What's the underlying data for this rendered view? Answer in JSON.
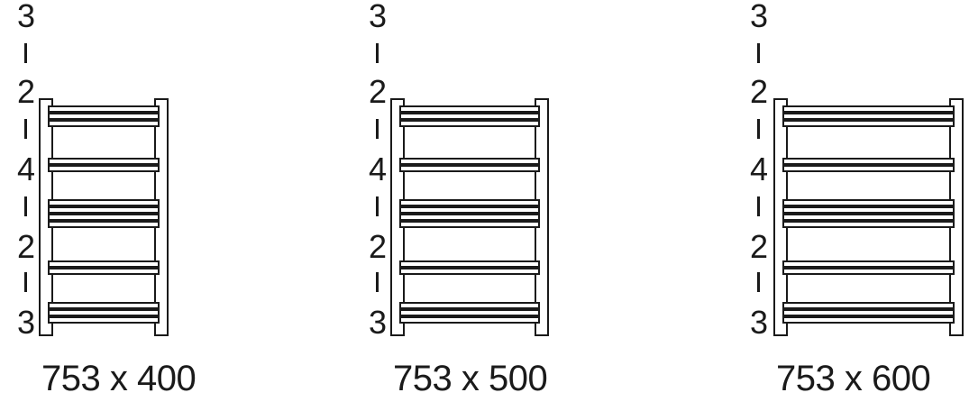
{
  "rail_groups": [
    "3",
    "2",
    "4",
    "2",
    "3"
  ],
  "separator_glyph": "I",
  "models": [
    {
      "size_label": "753 x 400"
    },
    {
      "size_label": "753 x 500"
    },
    {
      "size_label": "753 x 600"
    }
  ]
}
